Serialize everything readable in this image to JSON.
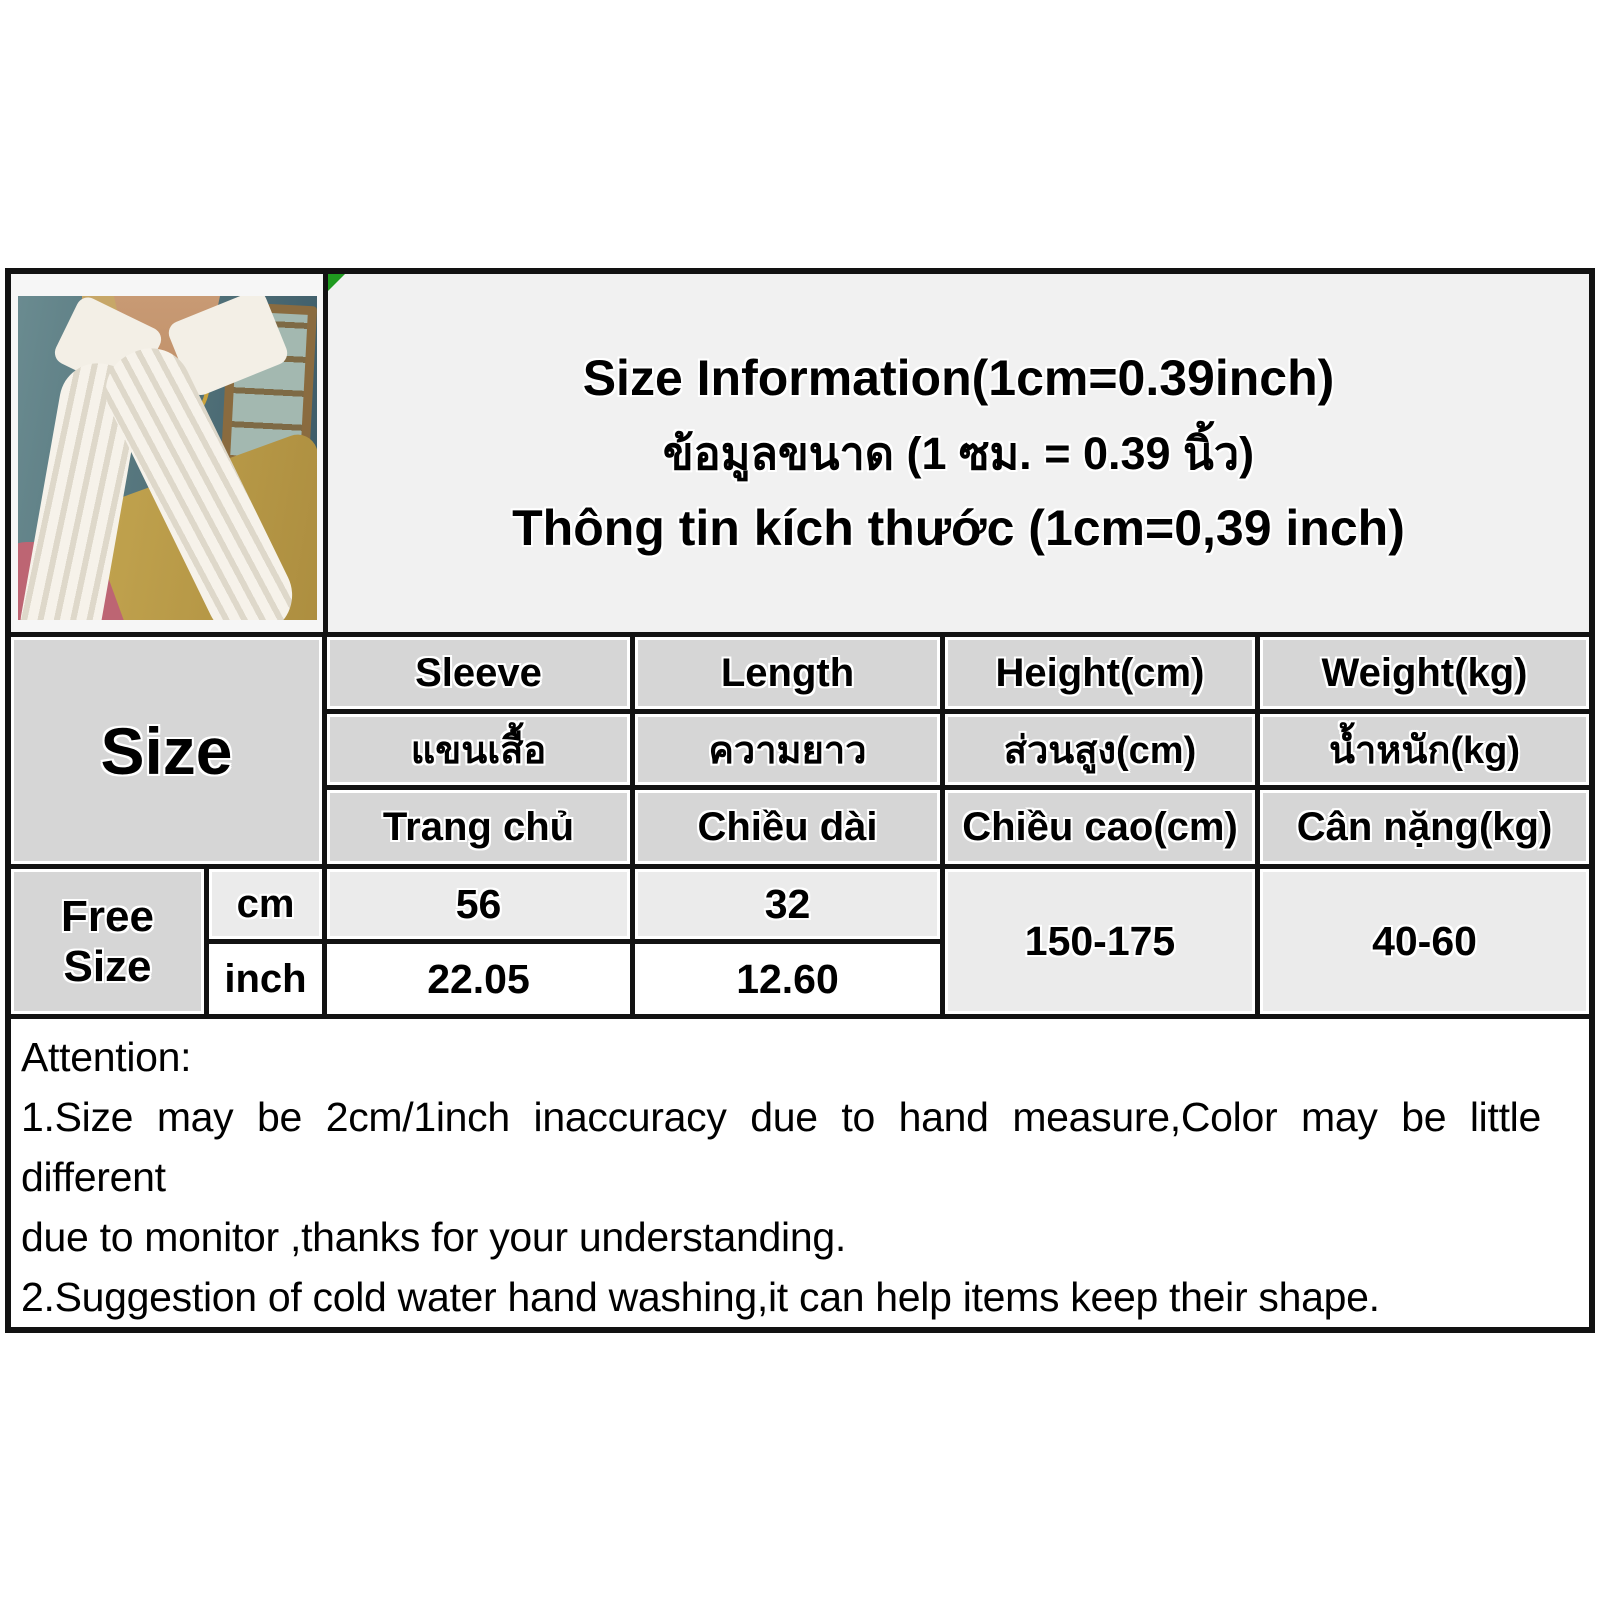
{
  "header": {
    "title_en": "Size Information(1cm=0.39inch)",
    "title_th": "ข้อมูลขนาด (1 ซม. = 0.39 นิ้ว)",
    "title_vi": "Thông tin kích thước (1cm=0,39 inch)"
  },
  "size_table": {
    "size_label": "Size",
    "columns": [
      {
        "en": "Sleeve",
        "th": "แขนเสื้อ",
        "vi": "Trang chủ"
      },
      {
        "en": "Length",
        "th": "ความยาว",
        "vi": "Chiều dài"
      },
      {
        "en": "Height(cm)",
        "th": "ส่วนสูง(cm)",
        "vi": "Chiều cao(cm)"
      },
      {
        "en": "Weight(kg)",
        "th": "น้ำหนัก(kg)",
        "vi": "Cân nặng(kg)"
      }
    ],
    "row_label": "Free Size",
    "units": [
      "cm",
      "inch"
    ],
    "cm_values": [
      "56",
      "32"
    ],
    "inch_values": [
      "22.05",
      "12.60"
    ],
    "height_range": "150-175",
    "weight_range": "40-60"
  },
  "attention": {
    "title": "Attention:",
    "lines": [
      "1.Size may be 2cm/1inch inaccuracy due to hand measure,Color may be little different",
      "due to monitor ,thanks for your understanding.",
      "2.Suggestion of cold water hand washing,it can help items keep their shape."
    ]
  },
  "colors": {
    "header_cell_gray": "#d6d6d6",
    "data_cell_light_gray": "#ebebeb",
    "panel_gray": "#f1f1f1",
    "border_black": "#121212",
    "corner_marker_green": "#1f9a1f"
  }
}
